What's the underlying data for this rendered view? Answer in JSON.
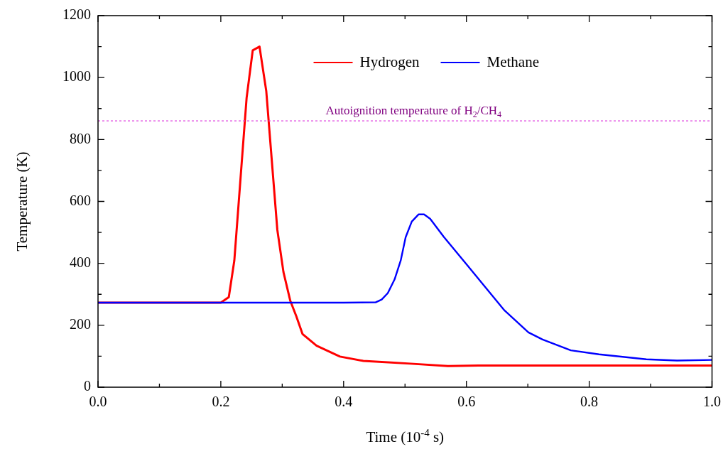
{
  "chart_data": {
    "type": "line",
    "xlabel": "Time (10$^{-4}$ s)",
    "ylabel": "Temperature (K)",
    "xlim": [
      0,
      1
    ],
    "ylim": [
      0,
      1200
    ],
    "xticks": [
      {
        "value": 0,
        "label": "0.0"
      },
      {
        "value": 0.1,
        "label": null
      },
      {
        "value": 0.2,
        "label": "0.2"
      },
      {
        "value": 0.3,
        "label": null
      },
      {
        "value": 0.4,
        "label": "0.4"
      },
      {
        "value": 0.5,
        "label": null
      },
      {
        "value": 0.6,
        "label": "0.6"
      },
      {
        "value": 0.7,
        "label": null
      },
      {
        "value": 0.8,
        "label": "0.8"
      },
      {
        "value": 0.9,
        "label": null
      },
      {
        "value": 1,
        "label": "1.0"
      }
    ],
    "yticks": [
      0,
      {
        "value": 100,
        "label": null
      },
      200,
      {
        "value": 300,
        "label": null
      },
      400,
      {
        "value": 500,
        "label": null
      },
      600,
      {
        "value": 700,
        "label": null
      },
      800,
      {
        "value": 900,
        "label": null
      },
      1000,
      {
        "value": 1100,
        "label": null
      },
      1200
    ],
    "grid": false,
    "legend": "top",
    "marker": "none",
    "line_style": "solid",
    "series": [
      {
        "name": "Hydrogen",
        "color": "#ff0000",
        "x": [
          0,
          0.1,
          0.2,
          0.213,
          0.222,
          0.242,
          0.252,
          0.263,
          0.274,
          0.292,
          0.302,
          0.313,
          0.323,
          0.333,
          0.356,
          0.394,
          0.432,
          0.509,
          0.57,
          0.62,
          0.8,
          1.0
        ],
        "values": [
          273,
          273,
          273,
          291,
          409,
          934,
          1088,
          1100,
          957,
          509,
          372,
          280,
          229,
          172,
          134,
          99,
          85,
          76,
          68,
          70,
          70,
          70
        ]
      },
      {
        "name": "Methane",
        "color": "#0000ff",
        "x": [
          0,
          0.2,
          0.4,
          0.452,
          0.462,
          0.472,
          0.483,
          0.493,
          0.501,
          0.511,
          0.522,
          0.531,
          0.541,
          0.563,
          0.603,
          0.632,
          0.662,
          0.701,
          0.724,
          0.77,
          0.816,
          0.893,
          0.943,
          1.0
        ],
        "values": [
          273,
          273,
          273,
          274,
          283,
          304,
          348,
          409,
          484,
          535,
          558,
          558,
          544,
          486,
          390,
          320,
          248,
          177,
          154,
          119,
          106,
          90,
          86,
          88
        ]
      }
    ],
    "ref_lines": [
      {
        "axis": "y",
        "value": 860,
        "label": "Autoignition temperature of H$_{2}$/CH$_{4}$",
        "color": "#e040e0",
        "line_style": "dotted"
      }
    ]
  }
}
